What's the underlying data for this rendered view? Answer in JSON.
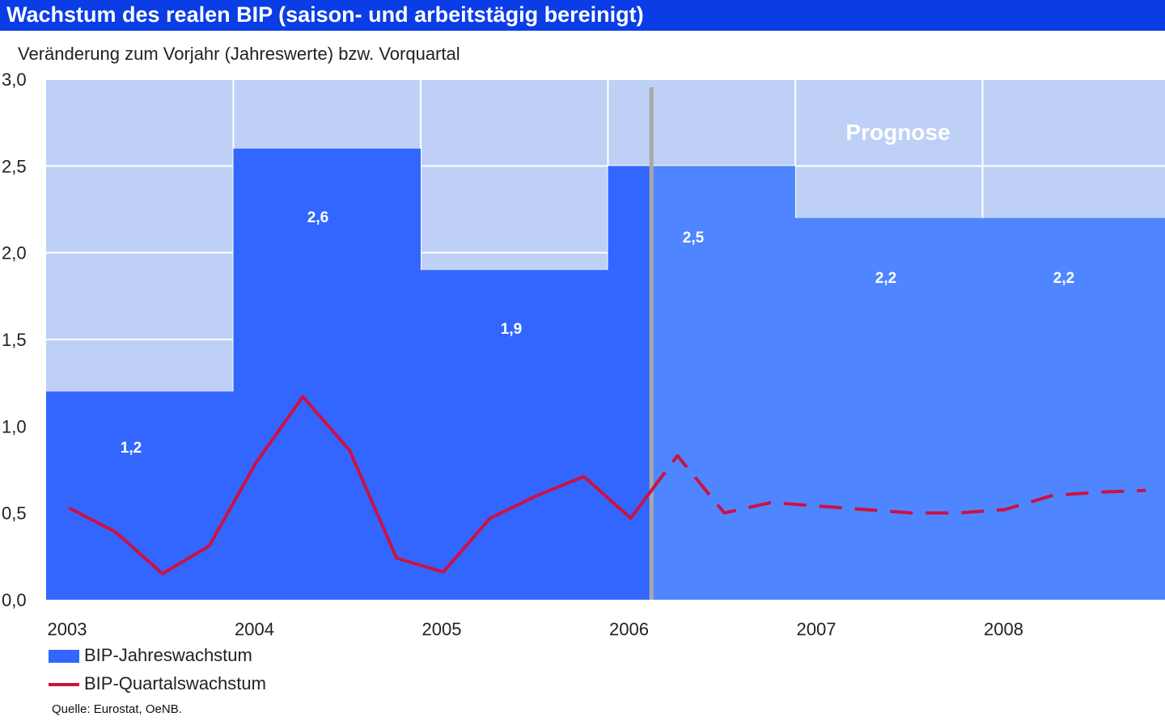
{
  "title": "Wachstum des realen BIP (saison- und arbeitstägig bereinigt)",
  "subtitle": "Veränderung zum Vorjahr (Jahreswerte) bzw. Vorquartal",
  "source": "Quelle: Eurostat, OeNB.",
  "forecast_label": "Prognose",
  "colors": {
    "title_bg": "#0a3de6",
    "plot_bg": "#bfd0f7",
    "bar_actual": "#3366ff",
    "bar_forecast": "#4f86ff",
    "quarterly_line": "#cc1144",
    "grid": "#ffffff",
    "divider": "#a8a8a8"
  },
  "chart_data": {
    "type": "bar",
    "title": "Wachstum des realen BIP (saison- und arbeitstägig bereinigt)",
    "ylabel": "Veränderung zum Vorjahr (Jahreswerte) bzw. Vorquartal",
    "ylim": [
      0,
      3.0
    ],
    "yticks": [
      "0,0",
      "0,5",
      "1,0",
      "1,5",
      "2,0",
      "2,5",
      "3,0"
    ],
    "yticks_values": [
      0,
      0.5,
      1.0,
      1.5,
      2.0,
      2.5,
      3.0
    ],
    "categories": [
      "2003",
      "2004",
      "2005",
      "2006",
      "2007",
      "2008"
    ],
    "grid": true,
    "legend_position": "bottom-left",
    "forecast_start": 2006.25,
    "series": [
      {
        "name": "BIP-Jahreswachstum",
        "type": "bar",
        "values": [
          1.2,
          2.6,
          1.9,
          2.5,
          2.2,
          2.2
        ],
        "labels": [
          "1,2",
          "2,6",
          "1,9",
          "2,5",
          "2,2",
          "2,2"
        ]
      },
      {
        "name": "BIP-Quartalswachstum",
        "type": "line",
        "x": [
          2003.0,
          2003.25,
          2003.5,
          2003.75,
          2004.0,
          2004.25,
          2004.5,
          2004.75,
          2005.0,
          2005.25,
          2005.5,
          2005.75,
          2006.0,
          2006.25,
          2006.5,
          2006.75,
          2007.0,
          2007.25,
          2007.5,
          2007.75,
          2008.0,
          2008.25,
          2008.5,
          2008.75
        ],
        "values": [
          0.53,
          0.39,
          0.15,
          0.31,
          0.79,
          1.17,
          0.86,
          0.24,
          0.16,
          0.47,
          0.6,
          0.71,
          0.47,
          0.83,
          0.5,
          0.56,
          0.54,
          0.52,
          0.5,
          0.5,
          0.52,
          0.6,
          0.62,
          0.63
        ],
        "forecast_from_index": 13
      }
    ]
  }
}
